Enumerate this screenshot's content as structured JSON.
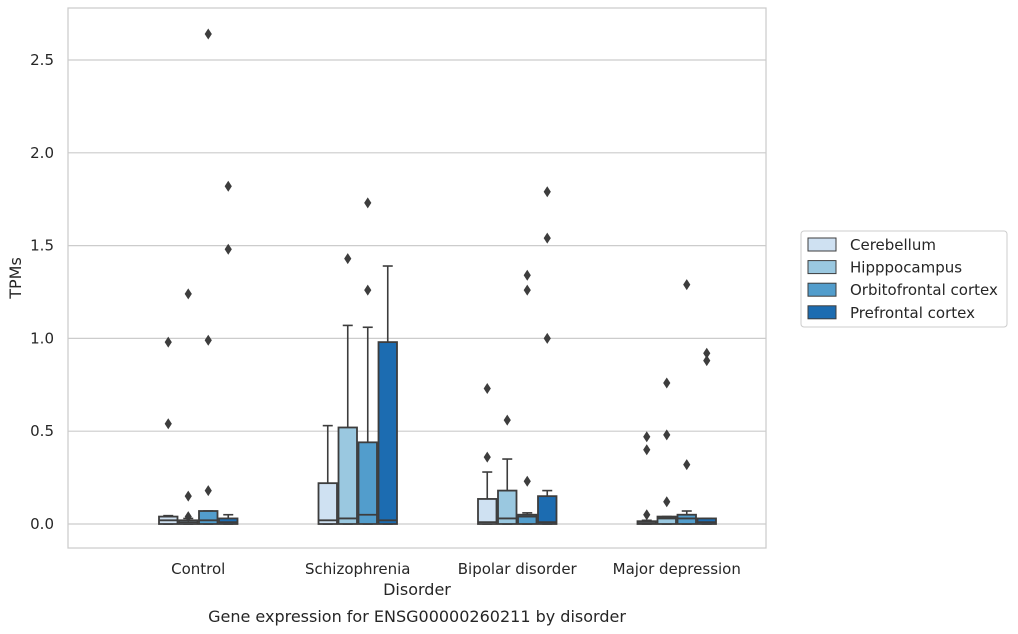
{
  "chart_data": {
    "type": "box",
    "caption": "Gene expression for ENSG00000260211 by disorder",
    "xlabel": "Disorder",
    "ylabel": "TPMs",
    "ylim": [
      -0.13,
      2.78
    ],
    "yticks": [
      0.0,
      0.5,
      1.0,
      1.5,
      2.0,
      2.5
    ],
    "ytick_labels": [
      "0.0",
      "0.5",
      "1.0",
      "1.5",
      "2.0",
      "2.5"
    ],
    "grid": "horizontal",
    "legend_position": "right",
    "categories": [
      "Control",
      "Schizophrenia",
      "Bipolar disorder",
      "Major depression"
    ],
    "series": [
      {
        "name": "Cerebellum",
        "color": "#cfe1f2",
        "boxes": [
          {
            "q1": 0.0,
            "median": 0.02,
            "q3": 0.04,
            "whislo": 0.0,
            "whishi": 0.045,
            "fliers": [
              0.98,
              0.54
            ]
          },
          {
            "q1": 0.0,
            "median": 0.02,
            "q3": 0.22,
            "whislo": 0.0,
            "whishi": 0.53,
            "fliers": []
          },
          {
            "q1": 0.0,
            "median": 0.01,
            "q3": 0.135,
            "whislo": 0.0,
            "whishi": 0.28,
            "fliers": [
              0.73,
              0.36
            ]
          },
          {
            "q1": 0.0,
            "median": 0.005,
            "q3": 0.015,
            "whislo": 0.0,
            "whishi": 0.02,
            "fliers": [
              0.47,
              0.4,
              0.05
            ]
          }
        ]
      },
      {
        "name": "Hipppocampus",
        "color": "#9ac8e0",
        "boxes": [
          {
            "q1": 0.0,
            "median": 0.01,
            "q3": 0.02,
            "whislo": 0.0,
            "whishi": 0.03,
            "fliers": [
              1.24,
              0.15,
              0.04
            ]
          },
          {
            "q1": 0.0,
            "median": 0.03,
            "q3": 0.52,
            "whislo": 0.0,
            "whishi": 1.07,
            "fliers": [
              1.43
            ]
          },
          {
            "q1": 0.0,
            "median": 0.03,
            "q3": 0.18,
            "whislo": 0.0,
            "whishi": 0.35,
            "fliers": [
              0.56
            ]
          },
          {
            "q1": 0.0,
            "median": 0.03,
            "q3": 0.04,
            "whislo": 0.0,
            "whishi": 0.04,
            "fliers": [
              0.76,
              0.48,
              0.12
            ]
          }
        ]
      },
      {
        "name": "Orbitofrontal cortex",
        "color": "#529dcc",
        "boxes": [
          {
            "q1": 0.0,
            "median": 0.02,
            "q3": 0.07,
            "whislo": 0.0,
            "whishi": 0.07,
            "fliers": [
              2.64,
              0.99,
              0.18
            ]
          },
          {
            "q1": 0.0,
            "median": 0.05,
            "q3": 0.44,
            "whislo": 0.0,
            "whishi": 1.06,
            "fliers": [
              1.73,
              1.26
            ]
          },
          {
            "q1": 0.0,
            "median": 0.04,
            "q3": 0.05,
            "whislo": 0.0,
            "whishi": 0.06,
            "fliers": [
              1.34,
              1.26,
              0.23
            ]
          },
          {
            "q1": 0.0,
            "median": 0.03,
            "q3": 0.05,
            "whislo": 0.0,
            "whishi": 0.07,
            "fliers": [
              1.29,
              0.32
            ]
          }
        ]
      },
      {
        "name": "Prefrontal cortex",
        "color": "#1c6cb1",
        "boxes": [
          {
            "q1": 0.0,
            "median": 0.01,
            "q3": 0.03,
            "whislo": 0.0,
            "whishi": 0.05,
            "fliers": [
              1.82,
              1.48
            ]
          },
          {
            "q1": 0.0,
            "median": 0.02,
            "q3": 0.98,
            "whislo": 0.0,
            "whishi": 1.39,
            "fliers": []
          },
          {
            "q1": 0.0,
            "median": 0.01,
            "q3": 0.15,
            "whislo": 0.0,
            "whishi": 0.18,
            "fliers": [
              1.79,
              1.54,
              1.0
            ]
          },
          {
            "q1": 0.0,
            "median": 0.01,
            "q3": 0.03,
            "whislo": 0.0,
            "whishi": 0.03,
            "fliers": [
              0.92,
              0.88
            ]
          }
        ]
      }
    ]
  }
}
